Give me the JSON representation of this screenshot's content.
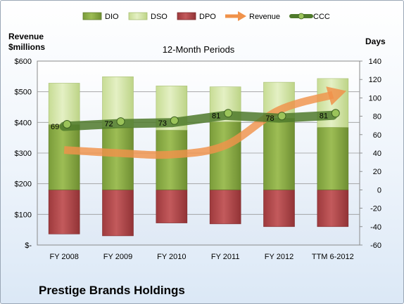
{
  "chart_data": {
    "type": "bar",
    "title": "12-Month Periods",
    "left_axis_title": [
      "Revenue",
      "$millions"
    ],
    "right_axis_title": "Days",
    "categories": [
      "FY 2008",
      "FY 2009",
      "FY 2010",
      "FY 2011",
      "FY 2012",
      "TTM 6-2012"
    ],
    "left_axis": {
      "ticks": [
        "$-",
        "$100",
        "$200",
        "$300",
        "$400",
        "$500",
        "$600"
      ],
      "range": [
        0,
        600
      ]
    },
    "right_axis": {
      "ticks": [
        "-60",
        "-40",
        "-20",
        "0",
        "20",
        "40",
        "60",
        "80",
        "100",
        "120",
        "140"
      ],
      "range": [
        -60,
        140
      ]
    },
    "legend": [
      "DIO",
      "DSO",
      "DPO",
      "Revenue",
      "CCC"
    ],
    "legend_position": "top",
    "series": [
      {
        "name": "DIO",
        "axis": "right",
        "values": [
          71,
          68,
          65,
          74,
          78,
          68
        ]
      },
      {
        "name": "DSO",
        "axis": "right",
        "values": [
          45,
          55,
          48,
          38,
          39,
          53
        ]
      },
      {
        "name": "DPO",
        "axis": "right",
        "values": [
          -48,
          -50,
          -36,
          -37,
          -40,
          -40
        ]
      },
      {
        "name": "Revenue",
        "axis": "left",
        "values": [
          310,
          300,
          295,
          325,
          440,
          490
        ]
      },
      {
        "name": "CCC",
        "axis": "right",
        "values": [
          69,
          72,
          73,
          81,
          78,
          81
        ],
        "labels": [
          "69",
          "72",
          "73",
          "81",
          "78",
          "81"
        ]
      }
    ],
    "grid": true,
    "colors": {
      "DIO": "#8aac44",
      "DSO": "#d6e7a7",
      "DPO": "#b4474a",
      "Revenue": "#f0924a",
      "CCC": "#4f7a2c"
    }
  },
  "footer": {
    "company": "Prestige Brands Holdings"
  }
}
